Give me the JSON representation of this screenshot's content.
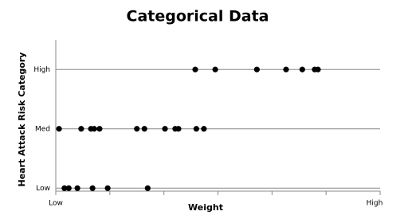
{
  "chart_data": {
    "type": "scatter",
    "title": "Categorical Data",
    "x_label": "Weight",
    "y_label": "Heart Attack Risk Category",
    "series": [
      {
        "color": "#000000",
        "x": [
          2.58,
          2.95,
          3.72,
          4.26,
          4.56,
          4.79,
          4.85,
          0.06,
          0.47,
          0.65,
          0.71,
          0.81,
          1.5,
          1.64,
          2.02,
          2.21,
          2.27,
          2.6,
          2.74,
          0.16,
          0.24,
          0.4,
          0.68,
          0.96,
          1.7
        ],
        "values": [
          2,
          2,
          2,
          2,
          2,
          2,
          2,
          1,
          1,
          1,
          1,
          1,
          1,
          1,
          1,
          1,
          1,
          1,
          1,
          0,
          0,
          0,
          0,
          0,
          0
        ]
      }
    ],
    "xlim": [
      0,
      6
    ],
    "xticks": [
      {
        "value": 0,
        "label": "Low"
      },
      {
        "value": 6,
        "label": "High"
      }
    ],
    "ylim": [
      -0.05,
      2.5
    ],
    "yticks": [
      {
        "value": 0,
        "label": "Low"
      },
      {
        "value": 1,
        "label": "Med"
      },
      {
        "value": 2,
        "label": "High"
      }
    ],
    "grid": true
  }
}
